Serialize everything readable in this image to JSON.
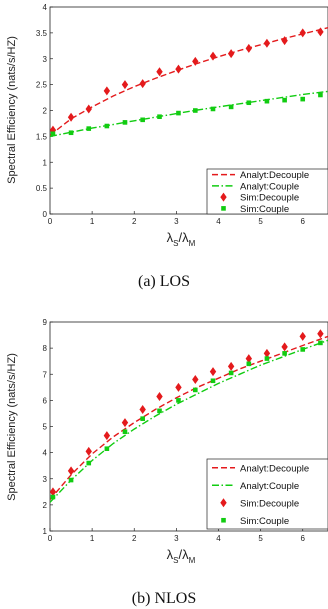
{
  "chart_data": [
    {
      "type": "line",
      "caption": "(a)  LOS",
      "ylabel": "Spectral Efficiency (nats/s/HZ)",
      "xlabel_main": "λ",
      "xlabel_sub1": "S",
      "xlabel_sep": "/λ",
      "xlabel_sub2": "M",
      "xlim": [
        0,
        6.6
      ],
      "ylim": [
        0,
        4
      ],
      "xticks": [
        0,
        1,
        2,
        3,
        4,
        5,
        6
      ],
      "yticks": [
        0,
        0.5,
        1,
        1.5,
        2,
        2.5,
        3,
        3.5,
        4
      ],
      "legend_position": "bottom-right",
      "series": [
        {
          "name": "Analyt:Decouple",
          "kind": "line",
          "dash": "dash",
          "color": "#e41a1c",
          "x": [
            0,
            0.5,
            1,
            1.5,
            2,
            2.5,
            3,
            3.5,
            4,
            4.5,
            5,
            5.5,
            6,
            6.6
          ],
          "y": [
            1.52,
            1.84,
            2.07,
            2.28,
            2.46,
            2.62,
            2.77,
            2.91,
            3.04,
            3.16,
            3.27,
            3.38,
            3.48,
            3.6
          ]
        },
        {
          "name": "Analyt:Couple",
          "kind": "line",
          "dash": "dashdot",
          "color": "#11cc11",
          "x": [
            0,
            0.5,
            1,
            1.5,
            2,
            2.5,
            3,
            3.5,
            4,
            4.5,
            5,
            5.5,
            6,
            6.6
          ],
          "y": [
            1.5,
            1.58,
            1.66,
            1.73,
            1.8,
            1.87,
            1.94,
            2.01,
            2.07,
            2.13,
            2.19,
            2.25,
            2.31,
            2.37
          ]
        },
        {
          "name": "Sim:Decouple",
          "kind": "marker",
          "marker": "diamond",
          "color": "#e41a1c",
          "x": [
            0.07,
            0.5,
            0.92,
            1.35,
            1.78,
            2.2,
            2.6,
            3.05,
            3.45,
            3.87,
            4.3,
            4.72,
            5.15,
            5.57,
            6.0,
            6.42
          ],
          "y": [
            1.62,
            1.87,
            2.03,
            2.38,
            2.5,
            2.52,
            2.75,
            2.8,
            2.95,
            3.05,
            3.1,
            3.2,
            3.3,
            3.35,
            3.5,
            3.52
          ]
        },
        {
          "name": "Sim:Couple",
          "kind": "marker",
          "marker": "square",
          "color": "#11cc11",
          "x": [
            0.07,
            0.5,
            0.92,
            1.35,
            1.78,
            2.2,
            2.6,
            3.05,
            3.45,
            3.87,
            4.3,
            4.72,
            5.15,
            5.57,
            6.0,
            6.42
          ],
          "y": [
            1.55,
            1.57,
            1.65,
            1.7,
            1.77,
            1.82,
            1.88,
            1.95,
            2.0,
            2.03,
            2.07,
            2.15,
            2.18,
            2.2,
            2.22,
            2.3
          ]
        }
      ]
    },
    {
      "type": "line",
      "caption": "(b)  NLOS",
      "ylabel": "Spectral Efficiency (nats/s/HZ)",
      "xlabel_main": "λ",
      "xlabel_sub1": "S",
      "xlabel_sep": "/λ",
      "xlabel_sub2": "M",
      "xlim": [
        0,
        6.6
      ],
      "ylim": [
        1,
        9
      ],
      "xticks": [
        0,
        1,
        2,
        3,
        4,
        5,
        6
      ],
      "yticks": [
        1,
        2,
        3,
        4,
        5,
        6,
        7,
        8,
        9
      ],
      "legend_position": "bottom-right",
      "series": [
        {
          "name": "Analyt:Decouple",
          "kind": "line",
          "dash": "dash",
          "color": "#e41a1c",
          "x": [
            0,
            0.5,
            1,
            1.5,
            2,
            2.5,
            3,
            3.5,
            4,
            4.5,
            5,
            5.5,
            6,
            6.6
          ],
          "y": [
            2.2,
            3.15,
            3.95,
            4.6,
            5.15,
            5.65,
            6.1,
            6.5,
            6.85,
            7.2,
            7.5,
            7.8,
            8.1,
            8.45
          ]
        },
        {
          "name": "Analyt:Couple",
          "kind": "line",
          "dash": "dashdot",
          "color": "#11cc11",
          "x": [
            0,
            0.5,
            1,
            1.5,
            2,
            2.5,
            3,
            3.5,
            4,
            4.5,
            5,
            5.5,
            6,
            6.6
          ],
          "y": [
            2.1,
            2.95,
            3.7,
            4.35,
            4.9,
            5.4,
            5.85,
            6.25,
            6.65,
            7.0,
            7.35,
            7.65,
            7.95,
            8.3
          ]
        },
        {
          "name": "Sim:Decouple",
          "kind": "marker",
          "marker": "diamond",
          "color": "#e41a1c",
          "x": [
            0.07,
            0.5,
            0.92,
            1.35,
            1.78,
            2.2,
            2.6,
            3.05,
            3.45,
            3.87,
            4.3,
            4.72,
            5.15,
            5.57,
            6.0,
            6.42
          ],
          "y": [
            2.5,
            3.3,
            4.05,
            4.65,
            5.15,
            5.65,
            6.15,
            6.5,
            6.8,
            7.1,
            7.3,
            7.6,
            7.8,
            8.05,
            8.45,
            8.55
          ]
        },
        {
          "name": "Sim:Couple",
          "kind": "marker",
          "marker": "square",
          "color": "#11cc11",
          "x": [
            0.07,
            0.5,
            0.92,
            1.35,
            1.78,
            2.2,
            2.6,
            3.05,
            3.45,
            3.87,
            4.3,
            4.72,
            5.15,
            5.57,
            6.0,
            6.42
          ],
          "y": [
            2.3,
            2.95,
            3.6,
            4.15,
            4.8,
            5.3,
            5.6,
            6.0,
            6.4,
            6.75,
            7.05,
            7.4,
            7.6,
            7.8,
            7.95,
            8.2
          ]
        }
      ]
    }
  ]
}
